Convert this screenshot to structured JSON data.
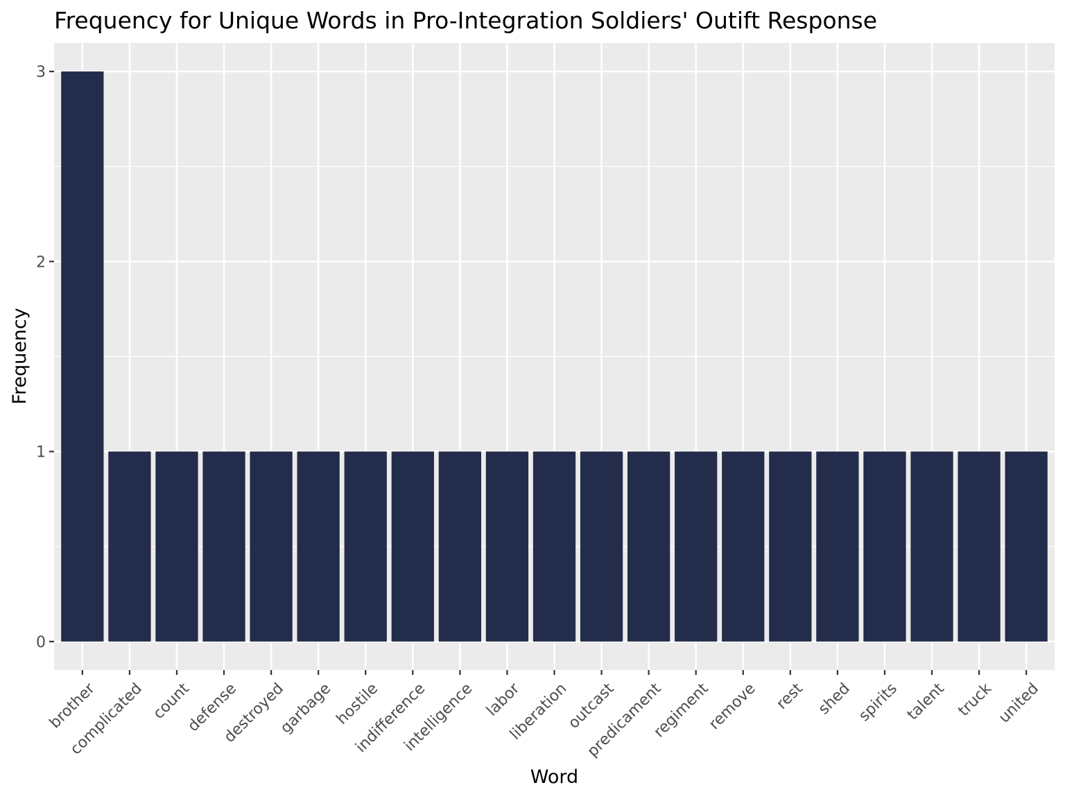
{
  "chart_data": {
    "type": "bar",
    "title": "Frequency for Unique Words in Pro-Integration Soldiers' Outift Response",
    "xlabel": "Word",
    "ylabel": "Frequency",
    "categories": [
      "brother",
      "complicated",
      "count",
      "defense",
      "destroyed",
      "garbage",
      "hostile",
      "indifference",
      "intelligence",
      "labor",
      "liberation",
      "outcast",
      "predicament",
      "regiment",
      "remove",
      "rest",
      "shed",
      "spirits",
      "talent",
      "truck",
      "united"
    ],
    "values": [
      3,
      1,
      1,
      1,
      1,
      1,
      1,
      1,
      1,
      1,
      1,
      1,
      1,
      1,
      1,
      1,
      1,
      1,
      1,
      1,
      1
    ],
    "ylim": [
      -0.15,
      3.15
    ],
    "yticks": [
      0,
      1,
      2,
      3
    ],
    "grid": true,
    "legend": "none",
    "colors": {
      "bar": "#232c4a",
      "panel": "#ebebeb",
      "grid": "#ffffff",
      "tick_text": "#4d4d4d"
    }
  }
}
